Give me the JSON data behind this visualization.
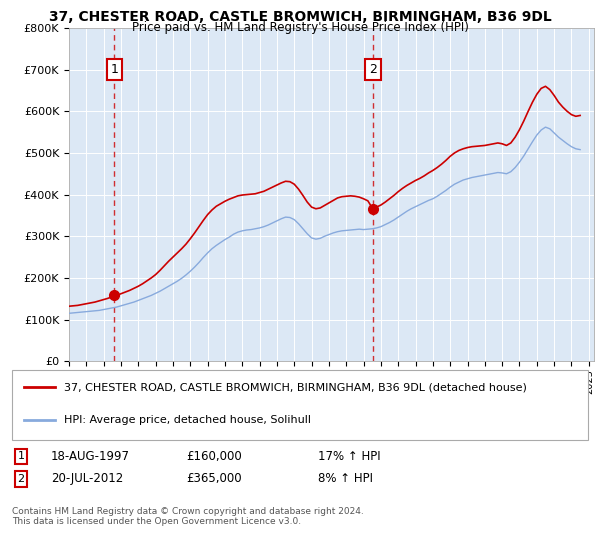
{
  "title1": "37, CHESTER ROAD, CASTLE BROMWICH, BIRMINGHAM, B36 9DL",
  "title2": "Price paid vs. HM Land Registry's House Price Index (HPI)",
  "legend_line1": "37, CHESTER ROAD, CASTLE BROMWICH, BIRMINGHAM, B36 9DL (detached house)",
  "legend_line2": "HPI: Average price, detached house, Solihull",
  "annotation1_label": "1",
  "annotation1_date": "18-AUG-1997",
  "annotation1_price": "£160,000",
  "annotation1_hpi": "17% ↑ HPI",
  "annotation2_label": "2",
  "annotation2_date": "20-JUL-2012",
  "annotation2_price": "£365,000",
  "annotation2_hpi": "8% ↑ HPI",
  "footer": "Contains HM Land Registry data © Crown copyright and database right 2024.\nThis data is licensed under the Open Government Licence v3.0.",
  "house_color": "#cc0000",
  "hpi_color": "#88aadd",
  "plot_bg_color": "#dce8f5",
  "ylim": [
    0,
    800000
  ],
  "sale1_year": 1997.62,
  "sale1_price": 160000,
  "sale2_year": 2012.54,
  "sale2_price": 365000,
  "years": [
    1995.0,
    1995.25,
    1995.5,
    1995.75,
    1996.0,
    1996.25,
    1996.5,
    1996.75,
    1997.0,
    1997.25,
    1997.5,
    1997.75,
    1998.0,
    1998.25,
    1998.5,
    1998.75,
    1999.0,
    1999.25,
    1999.5,
    1999.75,
    2000.0,
    2000.25,
    2000.5,
    2000.75,
    2001.0,
    2001.25,
    2001.5,
    2001.75,
    2002.0,
    2002.25,
    2002.5,
    2002.75,
    2003.0,
    2003.25,
    2003.5,
    2003.75,
    2004.0,
    2004.25,
    2004.5,
    2004.75,
    2005.0,
    2005.25,
    2005.5,
    2005.75,
    2006.0,
    2006.25,
    2006.5,
    2006.75,
    2007.0,
    2007.25,
    2007.5,
    2007.75,
    2008.0,
    2008.25,
    2008.5,
    2008.75,
    2009.0,
    2009.25,
    2009.5,
    2009.75,
    2010.0,
    2010.25,
    2010.5,
    2010.75,
    2011.0,
    2011.25,
    2011.5,
    2011.75,
    2012.0,
    2012.25,
    2012.5,
    2012.75,
    2013.0,
    2013.25,
    2013.5,
    2013.75,
    2014.0,
    2014.25,
    2014.5,
    2014.75,
    2015.0,
    2015.25,
    2015.5,
    2015.75,
    2016.0,
    2016.25,
    2016.5,
    2016.75,
    2017.0,
    2017.25,
    2017.5,
    2017.75,
    2018.0,
    2018.25,
    2018.5,
    2018.75,
    2019.0,
    2019.25,
    2019.5,
    2019.75,
    2020.0,
    2020.25,
    2020.5,
    2020.75,
    2021.0,
    2021.25,
    2021.5,
    2021.75,
    2022.0,
    2022.25,
    2022.5,
    2022.75,
    2023.0,
    2023.25,
    2023.5,
    2023.75,
    2024.0,
    2024.25,
    2024.5
  ],
  "hpi_values": [
    115000,
    116000,
    117000,
    118000,
    119000,
    120000,
    121000,
    122000,
    124000,
    126000,
    128000,
    130000,
    133000,
    136000,
    139000,
    142000,
    146000,
    150000,
    154000,
    158000,
    163000,
    168000,
    174000,
    180000,
    186000,
    192000,
    199000,
    207000,
    216000,
    226000,
    237000,
    249000,
    260000,
    270000,
    278000,
    285000,
    292000,
    298000,
    305000,
    310000,
    313000,
    315000,
    316000,
    318000,
    320000,
    323000,
    327000,
    332000,
    337000,
    342000,
    346000,
    345000,
    340000,
    330000,
    318000,
    306000,
    296000,
    293000,
    295000,
    300000,
    304000,
    308000,
    311000,
    313000,
    314000,
    315000,
    316000,
    317000,
    316000,
    317000,
    318000,
    320000,
    323000,
    328000,
    333000,
    339000,
    346000,
    353000,
    360000,
    366000,
    371000,
    376000,
    381000,
    386000,
    390000,
    396000,
    403000,
    410000,
    418000,
    425000,
    430000,
    435000,
    438000,
    441000,
    443000,
    445000,
    447000,
    449000,
    451000,
    453000,
    452000,
    450000,
    455000,
    465000,
    478000,
    493000,
    510000,
    527000,
    543000,
    555000,
    562000,
    558000,
    548000,
    538000,
    530000,
    522000,
    515000,
    510000,
    508000
  ],
  "house_values": [
    132000,
    133000,
    134000,
    136000,
    138000,
    140000,
    142000,
    145000,
    148000,
    151000,
    155000,
    158000,
    162000,
    166000,
    170000,
    175000,
    180000,
    186000,
    193000,
    200000,
    208000,
    218000,
    229000,
    240000,
    250000,
    260000,
    270000,
    281000,
    294000,
    308000,
    323000,
    338000,
    352000,
    363000,
    372000,
    378000,
    384000,
    389000,
    393000,
    397000,
    399000,
    400000,
    401000,
    402000,
    405000,
    408000,
    413000,
    418000,
    423000,
    428000,
    432000,
    431000,
    425000,
    413000,
    398000,
    382000,
    370000,
    366000,
    368000,
    374000,
    380000,
    386000,
    392000,
    395000,
    396000,
    397000,
    396000,
    394000,
    390000,
    385000,
    368000,
    370000,
    375000,
    382000,
    390000,
    398000,
    407000,
    415000,
    422000,
    428000,
    434000,
    439000,
    445000,
    452000,
    458000,
    465000,
    473000,
    482000,
    492000,
    500000,
    506000,
    510000,
    513000,
    515000,
    516000,
    517000,
    518000,
    520000,
    522000,
    524000,
    522000,
    518000,
    524000,
    538000,
    556000,
    577000,
    600000,
    622000,
    641000,
    655000,
    660000,
    652000,
    638000,
    622000,
    610000,
    600000,
    592000,
    588000,
    590000
  ]
}
